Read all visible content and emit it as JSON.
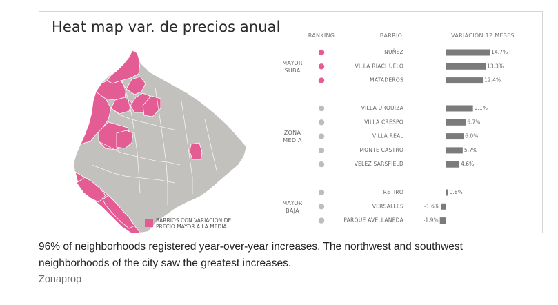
{
  "title": "Heat map var. de precios anual",
  "caption": "96% of neighborhoods registered year-over-year increases. The northwest and southwest neighborhoods of the city saw the greatest increases.",
  "source": "Zonaprop",
  "map": {
    "legend_text_line1": "BARRIOS CON VARIACION DE",
    "legend_text_line2": "PRECIO MAYOR A LA MEDIA",
    "highlight_color": "#e35d94",
    "base_color": "#c2c1bd"
  },
  "chart_data": {
    "type": "bar",
    "title": "Heat map var. de precios anual",
    "headers": {
      "ranking": "RANKING",
      "barrio": "BARRIO",
      "variation": "VARIACIÓN 12 MESES"
    },
    "groups": [
      {
        "label_line1": "MAYOR",
        "label_line2": "SUBA",
        "dot_color": "#e35d94",
        "rows": [
          {
            "barrio": "NUÑEZ",
            "value": 14.7,
            "label": "14.7%"
          },
          {
            "barrio": "VILLA RIACHUELO",
            "value": 13.3,
            "label": "13.3%"
          },
          {
            "barrio": "MATADEROS",
            "value": 12.4,
            "label": "12.4%"
          }
        ]
      },
      {
        "label_line1": "ZONA",
        "label_line2": "MEDIA",
        "dot_color": "#bdbdbd",
        "rows": [
          {
            "barrio": "VILLA URQUIZA",
            "value": 9.1,
            "label": "9.1%"
          },
          {
            "barrio": "VILLA CRESPO",
            "value": 6.7,
            "label": "6.7%"
          },
          {
            "barrio": "VILLA REAL",
            "value": 6.0,
            "label": "6.0%"
          },
          {
            "barrio": "MONTE CASTRO",
            "value": 5.7,
            "label": "5.7%"
          },
          {
            "barrio": "VELEZ SARSFIELD",
            "value": 4.6,
            "label": "4.6%"
          }
        ]
      },
      {
        "label_line1": "MAYOR",
        "label_line2": "BAJA",
        "dot_color": "#bdbdbd",
        "rows": [
          {
            "barrio": "RETIRO",
            "value": 0.8,
            "label": "0.8%"
          },
          {
            "barrio": "VERSALLES",
            "value": -1.6,
            "label": "-1.6%"
          },
          {
            "barrio": "PARQUE AVELLANEDA",
            "value": -1.9,
            "label": "-1.9%"
          }
        ]
      }
    ],
    "bar_color": "#7b7b7b",
    "grid": false
  }
}
